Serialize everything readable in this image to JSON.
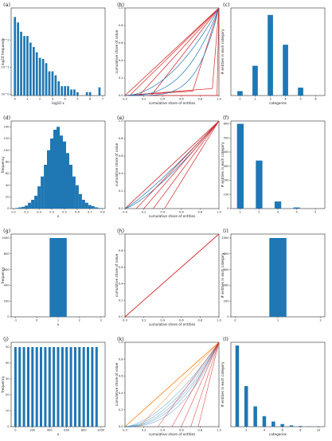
{
  "colors": {
    "bar": "#1f77b4",
    "blue_line": "#1f77b4",
    "red_line": "#d62728",
    "orange_line": "#ff7f0e",
    "diag": "#d62728",
    "axis": "#000000"
  },
  "chart_data": [
    {
      "panel": "(a)",
      "type": "bar",
      "xlabel": "log10 x",
      "ylabel": "log10 frequency",
      "xticks": [
        "0",
        "1",
        "2",
        "3",
        "4",
        "5",
        "6",
        "7"
      ],
      "yticks": [
        "10^0",
        "10^1",
        "10^2"
      ],
      "x": [
        0,
        0.25,
        0.5,
        0.75,
        1.0,
        1.25,
        1.5,
        1.75,
        2.0,
        2.25,
        2.5,
        2.75,
        3.0,
        3.25,
        3.5,
        3.75,
        4.0,
        4.25,
        4.5,
        4.75,
        5.0,
        5.75,
        6.0,
        6.75
      ],
      "values": [
        700,
        440,
        200,
        140,
        140,
        80,
        55,
        35,
        22,
        20,
        14,
        7,
        7,
        5,
        3,
        2,
        2,
        2,
        1.5,
        1.5,
        1.2,
        1.2,
        1.2,
        1.8
      ],
      "xlim": [
        -0.3,
        7.2
      ],
      "ylim_log": [
        0.9,
        1500
      ]
    },
    {
      "panel": "(b)",
      "type": "line",
      "xlabel": "cumulative share of entities",
      "ylabel": "cumulative share of value",
      "xticks": [
        "0.0",
        "0.2",
        "0.4",
        "0.6",
        "0.8",
        "1.0"
      ],
      "yticks": [
        "0.0",
        "0.2",
        "0.4",
        "0.6",
        "0.8",
        "1.0"
      ],
      "xlim": [
        0,
        1
      ],
      "ylim": [
        0,
        1
      ]
    },
    {
      "panel": "(c)",
      "type": "bar",
      "xlabel": "categories",
      "ylabel": "# entities in each category",
      "categories": [
        "1",
        "2",
        "3",
        "4",
        "5",
        "6"
      ],
      "values": [
        25,
        170,
        460,
        290,
        45,
        0
      ]
    },
    {
      "panel": "(d)",
      "type": "bar",
      "xlabel": "x",
      "ylabel": "frequency",
      "xticks": [
        "0.1",
        "0.2",
        "0.3",
        "0.4",
        "0.5",
        "0.6",
        "0.7",
        "0.8"
      ],
      "yticks": [
        "0",
        "20",
        "40",
        "60",
        "80",
        "100",
        "120",
        "140"
      ],
      "x": [
        0.125,
        0.15,
        0.175,
        0.2,
        0.225,
        0.25,
        0.275,
        0.3,
        0.325,
        0.35,
        0.375,
        0.4,
        0.425,
        0.45,
        0.475,
        0.5,
        0.525,
        0.55,
        0.575,
        0.6,
        0.625,
        0.65,
        0.675,
        0.7,
        0.725,
        0.75,
        0.775
      ],
      "values": [
        1,
        2,
        3,
        5,
        10,
        15,
        22,
        38,
        55,
        75,
        100,
        120,
        135,
        140,
        125,
        115,
        95,
        75,
        55,
        40,
        25,
        15,
        10,
        6,
        4,
        2,
        1
      ],
      "ylim": [
        0,
        150
      ]
    },
    {
      "panel": "(e)",
      "type": "line",
      "xlabel": "cumulative share of entities",
      "ylabel": "cumulative share of value",
      "xticks": [
        "0.0",
        "0.2",
        "0.4",
        "0.6",
        "0.8",
        "1.0"
      ],
      "yticks": [
        "0.0",
        "0.2",
        "0.4",
        "0.6",
        "0.8",
        "1.0"
      ]
    },
    {
      "panel": "(f)",
      "type": "bar",
      "xlabel": "",
      "ylabel": "# entities in each category",
      "categories": [
        "1",
        "2",
        "3",
        "4",
        "5"
      ],
      "values": [
        600,
        340,
        50,
        8,
        0
      ],
      "yticks": [
        "0",
        "100",
        "200",
        "300",
        "400",
        "500",
        "600"
      ]
    },
    {
      "panel": "(g)",
      "type": "bar",
      "xlabel": "x",
      "ylabel": "frequency",
      "xticks": [
        "-1",
        "0",
        "1",
        "2",
        "3"
      ],
      "yticks": [
        "0",
        "200",
        "400",
        "600",
        "800",
        "1000"
      ],
      "x": [
        1
      ],
      "values": [
        1000
      ],
      "xlim": [
        -1,
        3
      ],
      "ylim": [
        0,
        1000
      ]
    },
    {
      "panel": "(h)",
      "type": "line",
      "xlabel": "cumulative share of entities",
      "ylabel": "cumulative share of value",
      "xticks": [
        "0.0",
        "0.2",
        "0.4",
        "0.6",
        "0.8",
        "1.0"
      ],
      "yticks": [
        "0.0",
        "0.2",
        "0.4",
        "0.6",
        "0.8",
        "1.0"
      ]
    },
    {
      "panel": "(i)",
      "type": "bar",
      "xlabel": "",
      "ylabel": "# entities in each category",
      "categories": [
        "1"
      ],
      "values": [
        1000
      ],
      "xticks": [
        "0",
        "1",
        "2"
      ],
      "yticks": [
        "0",
        "200",
        "400",
        "600",
        "800",
        "1000"
      ]
    },
    {
      "panel": "(j)",
      "type": "bar",
      "xlabel": "x",
      "ylabel": "frequency",
      "xticks": [
        "0",
        "200",
        "400",
        "600",
        "800",
        "1000"
      ],
      "yticks": [
        "0",
        "10",
        "20",
        "30",
        "40",
        "50"
      ],
      "x": [
        0,
        50,
        100,
        150,
        200,
        250,
        300,
        350,
        400,
        450,
        500,
        550,
        600,
        650,
        700,
        750,
        800,
        850,
        900,
        950
      ],
      "values": [
        50,
        50,
        50,
        50,
        50,
        50,
        50,
        50,
        50,
        50,
        50,
        50,
        50,
        50,
        50,
        50,
        50,
        50,
        50,
        50
      ],
      "xlim": [
        -50,
        1050
      ],
      "ylim": [
        0,
        50
      ]
    },
    {
      "panel": "(k)",
      "type": "line",
      "xlabel": "cumulative share of entities",
      "ylabel": "cumulative share of value",
      "xticks": [
        "0.0",
        "0.2",
        "0.4",
        "0.6",
        "0.8",
        "1.0"
      ],
      "yticks": [
        "0.0",
        "0.2",
        "0.4",
        "0.6",
        "0.8",
        "1.0"
      ]
    },
    {
      "panel": "(l)",
      "type": "bar",
      "xlabel": "categories",
      "ylabel": "# entities in each category",
      "categories": [
        "1",
        "2",
        "3",
        "4",
        "5",
        "6",
        "7",
        "8",
        "9",
        "10"
      ],
      "values": [
        500,
        250,
        125,
        65,
        32,
        16,
        8,
        4,
        2,
        1
      ],
      "xticks": [
        "2",
        "4",
        "6",
        "8",
        "10"
      ]
    }
  ]
}
